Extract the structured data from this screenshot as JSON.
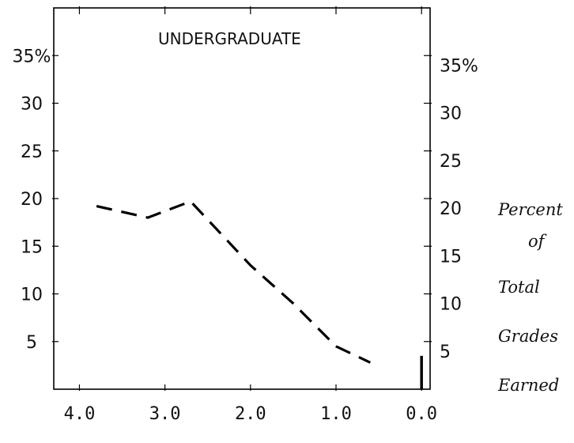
{
  "chart_data": {
    "type": "line",
    "title": "UNDERGRADUATE",
    "ylabel_lines": [
      "Percent",
      "of",
      "Total",
      "Grades",
      "Earned"
    ],
    "ylim": [
      0,
      40
    ],
    "xlim": [
      4.3,
      -0.1
    ],
    "x_ticks": [
      {
        "value": 4.0,
        "label": "4.0"
      },
      {
        "value": 3.0,
        "label": "3.0"
      },
      {
        "value": 2.0,
        "label": "2.0"
      },
      {
        "value": 1.0,
        "label": "1.0"
      },
      {
        "value": 0.0,
        "label": "0.0"
      }
    ],
    "y_ticks_left": [
      {
        "value": 35,
        "label": "35%"
      },
      {
        "value": 30,
        "label": "30"
      },
      {
        "value": 25,
        "label": "25"
      },
      {
        "value": 20,
        "label": "20"
      },
      {
        "value": 15,
        "label": "15"
      },
      {
        "value": 10,
        "label": "10"
      },
      {
        "value": 5,
        "label": "5"
      }
    ],
    "y_ticks_right": [
      {
        "value": 35,
        "label": "35%"
      },
      {
        "value": 30,
        "label": "30"
      },
      {
        "value": 25,
        "label": "25"
      },
      {
        "value": 20,
        "label": "20"
      },
      {
        "value": 15,
        "label": "15"
      },
      {
        "value": 10,
        "label": "10"
      },
      {
        "value": 5,
        "label": "5"
      }
    ],
    "series": [
      {
        "style": "dashed",
        "points": [
          {
            "x": 3.8,
            "y": 19.2
          },
          {
            "x": 3.2,
            "y": 18.0
          },
          {
            "x": 2.7,
            "y": 19.7
          },
          {
            "x": 2.0,
            "y": 13.0
          },
          {
            "x": 1.5,
            "y": 9.0
          },
          {
            "x": 1.0,
            "y": 4.5
          },
          {
            "x": 0.6,
            "y": 2.8
          }
        ]
      }
    ],
    "bars": [
      {
        "x": 0.0,
        "y": 3.5
      }
    ],
    "grid": false
  }
}
